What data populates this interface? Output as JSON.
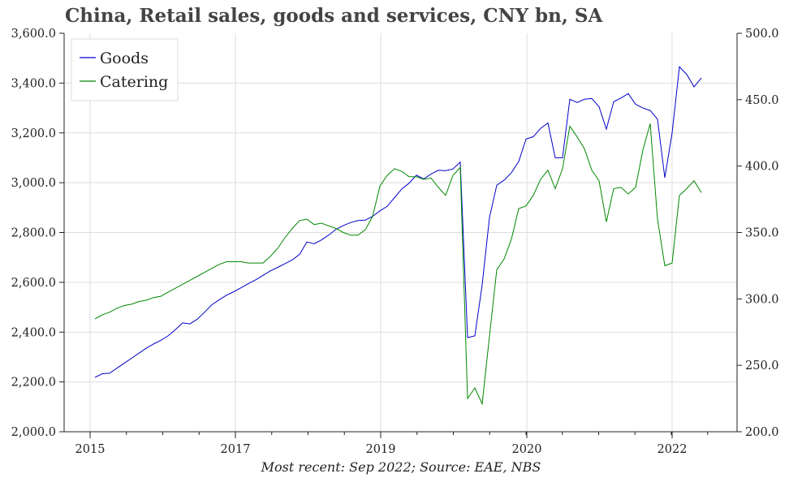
{
  "chart_data": {
    "type": "line",
    "title": "China, Retail sales, goods and services, CNY bn, SA",
    "footer": "Most recent: Sep 2022; Source: EAE, NBS",
    "x_tick_labels": [
      "2015",
      "2017",
      "2019",
      "2020",
      "2022"
    ],
    "left_axis": {
      "ylim": [
        2000,
        3600
      ],
      "ticks": [
        "2,000.0",
        "2,200.0",
        "2,400.0",
        "2,600.0",
        "2,800.0",
        "3,000.0",
        "3,200.0",
        "3,400.0",
        "3,600.0"
      ]
    },
    "right_axis": {
      "ylim": [
        200,
        500
      ],
      "ticks": [
        "200.0",
        "250.0",
        "300.0",
        "350.0",
        "400.0",
        "450.0",
        "500.0"
      ]
    },
    "grid": true,
    "legend_placement": "top-left",
    "series": [
      {
        "name": "Goods",
        "axis": "left",
        "color": "#0000cc",
        "values": [
          2218,
          2233,
          2235,
          2255,
          2275,
          2295,
          2315,
          2335,
          2352,
          2367,
          2385,
          2410,
          2437,
          2433,
          2452,
          2480,
          2510,
          2530,
          2548,
          2562,
          2578,
          2595,
          2610,
          2628,
          2646,
          2660,
          2675,
          2690,
          2712,
          2762,
          2755,
          2770,
          2790,
          2813,
          2828,
          2840,
          2848,
          2850,
          2865,
          2887,
          2905,
          2940,
          2975,
          2998,
          3030,
          3015,
          3035,
          3050,
          3048,
          3055,
          3083,
          2378,
          2385,
          2590,
          2860,
          2990,
          3010,
          3040,
          3085,
          3175,
          3185,
          3218,
          3240,
          3100,
          3100,
          3335,
          3322,
          3335,
          3338,
          3305,
          3215,
          3325,
          3340,
          3358,
          3315,
          3300,
          3290,
          3255,
          3020,
          3200,
          3465,
          3435,
          3385,
          3420
        ]
      },
      {
        "name": "Catering",
        "axis": "right",
        "color": "#008800",
        "values": [
          285,
          288,
          290,
          293,
          295,
          296,
          298,
          299,
          301,
          302,
          305,
          308,
          311,
          314,
          317,
          320,
          323,
          326,
          328,
          328,
          328,
          327,
          327,
          327,
          332,
          338,
          346,
          353,
          359,
          360,
          356,
          357,
          355,
          353,
          350,
          348,
          348,
          352,
          362,
          385,
          393,
          398,
          396,
          392,
          392,
          390,
          391,
          384,
          378,
          393,
          399,
          225,
          233,
          221,
          272,
          322,
          330,
          345,
          368,
          370,
          378,
          390,
          397,
          383,
          398,
          430,
          422,
          413,
          397,
          389,
          358,
          383,
          384,
          379,
          384,
          412,
          432,
          360,
          325,
          327,
          378,
          383,
          389,
          380
        ]
      }
    ]
  }
}
